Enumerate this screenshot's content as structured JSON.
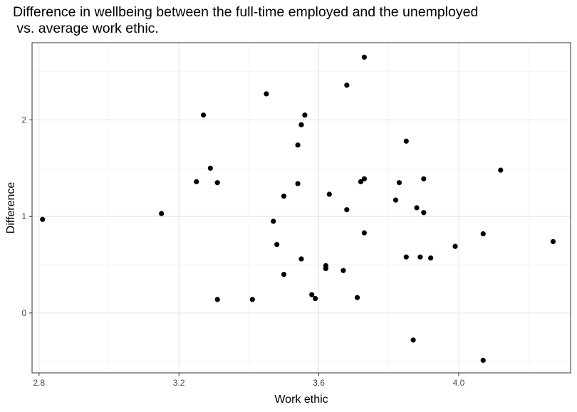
{
  "chart_data": {
    "type": "scatter",
    "title_line1": "Difference in wellbeing between the full-time employed and the unemployed",
    "title_line2": " vs. average work ethic.",
    "xlabel": "Work ethic",
    "ylabel": "Difference",
    "xlim": [
      2.78,
      4.32
    ],
    "ylim": [
      -0.62,
      2.8
    ],
    "x_ticks": [
      2.8,
      3.2,
      3.6,
      4.0
    ],
    "x_tick_labels": [
      "2.8",
      "3.2",
      "3.6",
      "4.0"
    ],
    "y_ticks": [
      0,
      1,
      2
    ],
    "y_tick_labels": [
      "0",
      "1",
      "2"
    ],
    "grid": true,
    "legend": "none",
    "point_color": "#000000",
    "points": [
      {
        "x": 2.81,
        "y": 0.97
      },
      {
        "x": 3.15,
        "y": 1.03
      },
      {
        "x": 3.25,
        "y": 1.36
      },
      {
        "x": 3.27,
        "y": 2.05
      },
      {
        "x": 3.29,
        "y": 1.5
      },
      {
        "x": 3.31,
        "y": 1.35
      },
      {
        "x": 3.31,
        "y": 0.14
      },
      {
        "x": 3.41,
        "y": 0.14
      },
      {
        "x": 3.45,
        "y": 2.27
      },
      {
        "x": 3.47,
        "y": 0.95
      },
      {
        "x": 3.48,
        "y": 0.71
      },
      {
        "x": 3.5,
        "y": 1.21
      },
      {
        "x": 3.5,
        "y": 0.4
      },
      {
        "x": 3.54,
        "y": 1.34
      },
      {
        "x": 3.54,
        "y": 1.74
      },
      {
        "x": 3.55,
        "y": 1.95
      },
      {
        "x": 3.56,
        "y": 2.05
      },
      {
        "x": 3.55,
        "y": 0.56
      },
      {
        "x": 3.58,
        "y": 0.19
      },
      {
        "x": 3.59,
        "y": 0.15
      },
      {
        "x": 3.62,
        "y": 0.49
      },
      {
        "x": 3.62,
        "y": 0.46
      },
      {
        "x": 3.63,
        "y": 1.23
      },
      {
        "x": 3.67,
        "y": 0.44
      },
      {
        "x": 3.68,
        "y": 2.36
      },
      {
        "x": 3.68,
        "y": 1.07
      },
      {
        "x": 3.71,
        "y": 0.16
      },
      {
        "x": 3.72,
        "y": 1.36
      },
      {
        "x": 3.73,
        "y": 2.65
      },
      {
        "x": 3.73,
        "y": 1.39
      },
      {
        "x": 3.73,
        "y": 0.83
      },
      {
        "x": 3.82,
        "y": 1.17
      },
      {
        "x": 3.83,
        "y": 1.35
      },
      {
        "x": 3.85,
        "y": 1.78
      },
      {
        "x": 3.85,
        "y": 0.58
      },
      {
        "x": 3.87,
        "y": -0.28
      },
      {
        "x": 3.88,
        "y": 1.09
      },
      {
        "x": 3.89,
        "y": 0.58
      },
      {
        "x": 3.9,
        "y": 1.39
      },
      {
        "x": 3.9,
        "y": 1.04
      },
      {
        "x": 3.92,
        "y": 0.57
      },
      {
        "x": 3.99,
        "y": 0.69
      },
      {
        "x": 4.07,
        "y": 0.82
      },
      {
        "x": 4.07,
        "y": -0.49
      },
      {
        "x": 4.12,
        "y": 1.48
      },
      {
        "x": 4.27,
        "y": 0.74
      }
    ]
  }
}
